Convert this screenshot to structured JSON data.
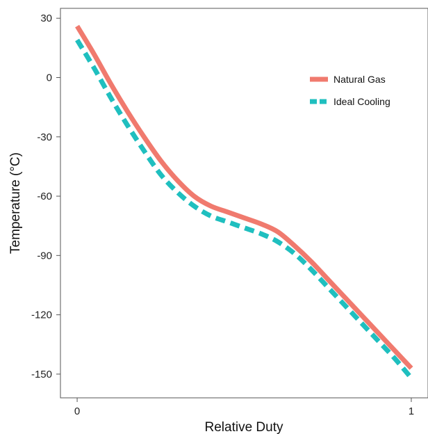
{
  "chart_data": {
    "type": "line",
    "title": "",
    "xlabel": "Relative Duty",
    "ylabel": "Temperature (°C)",
    "xlim": [
      -0.05,
      1.05
    ],
    "ylim": [
      -162,
      35
    ],
    "x_ticks": [
      0,
      1
    ],
    "x_tick_labels": [
      "0",
      "1"
    ],
    "y_ticks": [
      30,
      0,
      -30,
      -60,
      -90,
      -120,
      -150
    ],
    "y_tick_labels": [
      "30",
      "0",
      "-30",
      "-60",
      "-90",
      "-120",
      "-150"
    ],
    "grid": false,
    "legend_position": "top-right",
    "series": [
      {
        "name": "Natural Gas",
        "color": "#F07A6E",
        "dash": "solid",
        "x": [
          0,
          0.05,
          0.1,
          0.15,
          0.2,
          0.25,
          0.3,
          0.35,
          0.4,
          0.45,
          0.5,
          0.55,
          0.6,
          0.65,
          0.7,
          0.75,
          0.8,
          0.85,
          0.9,
          0.95,
          1.0
        ],
        "y": [
          26,
          12,
          -3,
          -17,
          -30,
          -42,
          -52,
          -60,
          -65,
          -68,
          -71,
          -74,
          -78,
          -85,
          -93,
          -102,
          -111,
          -120,
          -129,
          -138,
          -147
        ]
      },
      {
        "name": "Ideal Cooling",
        "color": "#1FBFBF",
        "dash": "dashed",
        "x": [
          0,
          0.05,
          0.1,
          0.15,
          0.2,
          0.25,
          0.3,
          0.35,
          0.4,
          0.45,
          0.5,
          0.55,
          0.6,
          0.65,
          0.7,
          0.75,
          0.8,
          0.85,
          0.9,
          0.95,
          1.0
        ],
        "y": [
          19,
          5,
          -10,
          -24,
          -37,
          -49,
          -58,
          -65,
          -70,
          -73,
          -76,
          -79,
          -83,
          -89,
          -97,
          -106,
          -115,
          -124,
          -133,
          -142,
          -152
        ]
      }
    ]
  }
}
